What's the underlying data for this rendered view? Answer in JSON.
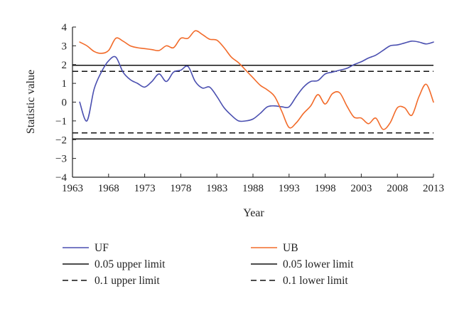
{
  "chart_data": {
    "type": "line",
    "title": "",
    "xlabel": "Year",
    "ylabel": "Statistic value",
    "xlim": [
      1963,
      2013
    ],
    "ylim": [
      -4,
      4
    ],
    "xticks": [
      "1963",
      "1968",
      "1973",
      "1978",
      "1983",
      "1988",
      "1993",
      "1998",
      "2003",
      "2008",
      "2013"
    ],
    "yticks": [
      "4",
      "3",
      "2",
      "1",
      "0",
      "−1",
      "−2",
      "−3",
      "−4"
    ],
    "grid": false,
    "legend_position": "bottom",
    "colors": {
      "UF": "#4a4fb0",
      "UB": "#f26b2a",
      "limits": "#111111"
    },
    "series": [
      {
        "name": "UF",
        "x": [
          1964,
          1965,
          1966,
          1967,
          1968,
          1969,
          1970,
          1971,
          1972,
          1973,
          1974,
          1975,
          1976,
          1977,
          1978,
          1979,
          1980,
          1981,
          1982,
          1983,
          1984,
          1985,
          1986,
          1987,
          1988,
          1989,
          1990,
          1991,
          1992,
          1993,
          1994,
          1995,
          1996,
          1997,
          1998,
          1999,
          2000,
          2001,
          2002,
          2003,
          2004,
          2005,
          2006,
          2007,
          2008,
          2009,
          2010,
          2011,
          2012,
          2013
        ],
        "y": [
          0.0,
          -1.0,
          0.7,
          1.6,
          2.2,
          2.4,
          1.6,
          1.2,
          1.0,
          0.8,
          1.1,
          1.5,
          1.1,
          1.6,
          1.7,
          1.9,
          1.1,
          0.75,
          0.8,
          0.3,
          -0.3,
          -0.7,
          -1.0,
          -1.0,
          -0.9,
          -0.6,
          -0.25,
          -0.2,
          -0.25,
          -0.25,
          0.3,
          0.8,
          1.1,
          1.15,
          1.5,
          1.6,
          1.7,
          1.8,
          2.0,
          2.15,
          2.35,
          2.5,
          2.75,
          3.0,
          3.05,
          3.15,
          3.25,
          3.2,
          3.1,
          3.2
        ]
      },
      {
        "name": "UB",
        "x": [
          1964,
          1965,
          1966,
          1967,
          1968,
          1969,
          1970,
          1971,
          1972,
          1973,
          1974,
          1975,
          1976,
          1977,
          1978,
          1979,
          1980,
          1981,
          1982,
          1983,
          1984,
          1985,
          1986,
          1987,
          1988,
          1989,
          1990,
          1991,
          1992,
          1993,
          1994,
          1995,
          1996,
          1997,
          1998,
          1999,
          2000,
          2001,
          2002,
          2003,
          2004,
          2005,
          2006,
          2007,
          2008,
          2009,
          2010,
          2011,
          2012,
          2013
        ],
        "y": [
          3.2,
          3.0,
          2.7,
          2.6,
          2.75,
          3.4,
          3.25,
          3.0,
          2.9,
          2.85,
          2.8,
          2.75,
          3.0,
          2.9,
          3.4,
          3.4,
          3.8,
          3.6,
          3.35,
          3.3,
          2.9,
          2.4,
          2.1,
          1.7,
          1.3,
          0.9,
          0.65,
          0.3,
          -0.5,
          -1.35,
          -1.1,
          -0.6,
          -0.2,
          0.4,
          -0.1,
          0.45,
          0.5,
          -0.2,
          -0.8,
          -0.85,
          -1.15,
          -0.85,
          -1.45,
          -1.1,
          -0.3,
          -0.3,
          -0.7,
          0.3,
          0.95,
          0.0
        ]
      },
      {
        "name": "0.05 upper limit",
        "value": 1.96,
        "style": "solid"
      },
      {
        "name": "0.05 lower limit",
        "value": -1.96,
        "style": "solid"
      },
      {
        "name": "0.1 upper limit",
        "value": 1.64,
        "style": "dashed"
      },
      {
        "name": "0.1 lower limit",
        "value": -1.64,
        "style": "dashed"
      }
    ],
    "legend": [
      "UF",
      "UB",
      "0.05 upper limit",
      "0.05 lower limit",
      "0.1 upper limit",
      "0.1 lower limit"
    ]
  }
}
